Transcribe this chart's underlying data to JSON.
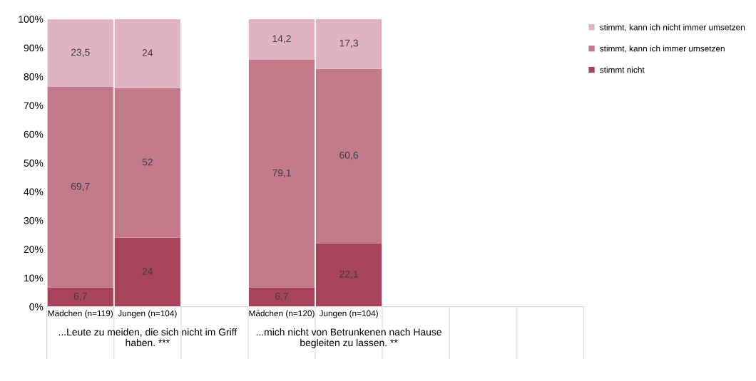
{
  "chart_data": {
    "type": "bar",
    "stacked": true,
    "categories": [
      "Mädchen (n=119)",
      "Jungen (n=104)",
      null,
      "Mädchen (n=120)",
      "Jungen (n=104)",
      null,
      null,
      null
    ],
    "series": [
      {
        "name": "stimmt nicht",
        "color": "#a8435c",
        "values": [
          6.7,
          24,
          null,
          6.7,
          22.1,
          null,
          null,
          null
        ],
        "value_labels": [
          "6,7",
          "24",
          null,
          "6,7",
          "22,1",
          null,
          null,
          null
        ]
      },
      {
        "name": "stimmt, kann ich immer umsetzen",
        "color": "#c27a8a",
        "values": [
          69.7,
          52,
          null,
          79.1,
          60.6,
          null,
          null,
          null
        ],
        "value_labels": [
          "69,7",
          "52",
          null,
          "79,1",
          "60,6",
          null,
          null,
          null
        ]
      },
      {
        "name": "stimmt, kann ich nicht immer umsetzen",
        "color": "#dfb3bf",
        "values": [
          23.5,
          24,
          null,
          14.2,
          17.3,
          null,
          null,
          null
        ],
        "value_labels": [
          "23,5",
          "24",
          null,
          "14,2",
          "17,3",
          null,
          null,
          null
        ]
      }
    ],
    "ylim": [
      0,
      100
    ],
    "yticks": [
      {
        "value": 0,
        "label": "0%"
      },
      {
        "value": 10,
        "label": "10%"
      },
      {
        "value": 20,
        "label": "20%"
      },
      {
        "value": 30,
        "label": "30%"
      },
      {
        "value": 40,
        "label": "40%"
      },
      {
        "value": 50,
        "label": "50%"
      },
      {
        "value": 60,
        "label": "60%"
      },
      {
        "value": 70,
        "label": "70%"
      },
      {
        "value": 80,
        "label": "80%"
      },
      {
        "value": 90,
        "label": "90%"
      },
      {
        "value": 100,
        "label": "100%"
      }
    ],
    "annotations": [
      "...Leute zu meiden, die sich nicht im Griff haben. ***",
      "...mich nicht von Betrunkenen nach Hause begleiten zu lassen. **"
    ],
    "legend": "right",
    "grid": false
  }
}
